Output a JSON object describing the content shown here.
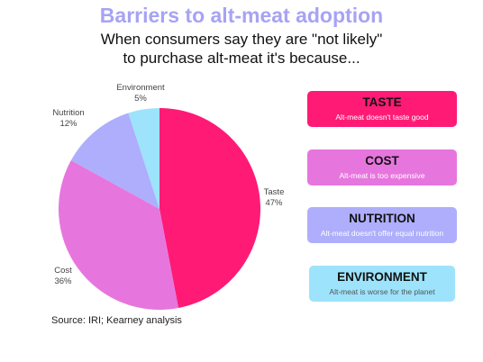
{
  "header": {
    "title": "Barriers to alt-meat adoption",
    "subtitle_line1": "When consumers say they are \"not likely\"",
    "subtitle_line2": "to purchase alt-meat it's because..."
  },
  "source": "Source: IRI; Kearney analysis",
  "colors": {
    "taste": "#ff1a75",
    "cost": "#e676de",
    "nutrition": "#aeaefc",
    "environment": "#9de3fb"
  },
  "chart_data": {
    "type": "pie",
    "slices": [
      {
        "label": "Taste",
        "value": 47,
        "value_label": "47%",
        "color": "#ff1a75"
      },
      {
        "label": "Cost",
        "value": 36,
        "value_label": "36%",
        "color": "#e676de"
      },
      {
        "label": "Nutrition",
        "value": 12,
        "value_label": "12%",
        "color": "#aeaefc"
      },
      {
        "label": "Environment",
        "value": 5,
        "value_label": "5%",
        "color": "#9de3fb"
      }
    ]
  },
  "reasons": [
    {
      "title": "TASTE",
      "desc": "Alt-meat doesn't taste good",
      "color": "#ff1a75"
    },
    {
      "title": "COST",
      "desc": "Alt-meat is too expensive",
      "color": "#e676de"
    },
    {
      "title": "NUTRITION",
      "desc": "Alt-meat doesn't offer equal nutrition",
      "color": "#aeaefc"
    },
    {
      "title": "ENVIRONMENT",
      "desc": "Alt-meat is worse for the planet",
      "color": "#9de3fb"
    }
  ]
}
